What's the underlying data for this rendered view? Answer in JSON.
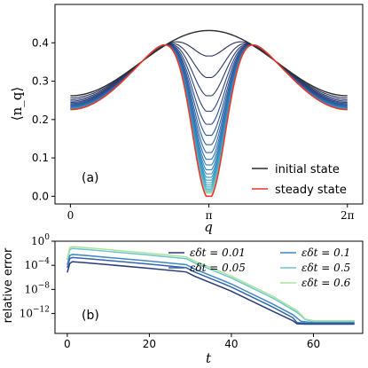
{
  "chart_data": [
    {
      "panel_label": "(a)",
      "type": "line",
      "xlabel": "q",
      "ylabel": "⟨n_q⟩",
      "xlim": [
        -0.35,
        6.63
      ],
      "ylim": [
        -0.02,
        0.5
      ],
      "xticks": [
        {
          "value": 0,
          "label": "0"
        },
        {
          "value": 3.14159,
          "label": "π"
        },
        {
          "value": 6.28319,
          "label": "2π"
        }
      ],
      "yticks": [
        {
          "value": 0.0,
          "label": "0.0"
        },
        {
          "value": 0.1,
          "label": "0.1"
        },
        {
          "value": 0.2,
          "label": "0.2"
        },
        {
          "value": 0.3,
          "label": "0.3"
        },
        {
          "value": 0.4,
          "label": "0.4"
        }
      ],
      "legend": {
        "placement": "lower-right",
        "entries": [
          {
            "label": "initial state",
            "color": "#2b2b2b"
          },
          {
            "label": "steady state",
            "color": "#e8392a"
          }
        ]
      },
      "series": [
        {
          "name": "initial state",
          "color": "#2b2b2b",
          "x": [
            0,
            0.785,
            1.571,
            2.356,
            3.14159,
            3.927,
            4.712,
            5.498,
            6.283
          ],
          "values": [
            0.262,
            0.282,
            0.342,
            0.405,
            0.432,
            0.405,
            0.342,
            0.282,
            0.262
          ]
        },
        {
          "name": "steady state",
          "color": "#e8392a",
          "x": [
            0,
            0.785,
            1.571,
            2.356,
            3.14159,
            3.927,
            4.712,
            5.498,
            6.283
          ],
          "values": [
            0.226,
            0.26,
            0.421,
            0.411,
            0.0,
            0.411,
            0.421,
            0.26,
            0.226
          ]
        }
      ],
      "intermediate_series_count": 24,
      "intermediate_colormap": [
        "#2b2b4a",
        "#2c4a8c",
        "#2f77b6",
        "#3aa1c8",
        "#6fc4c4",
        "#a6dcc6"
      ]
    },
    {
      "panel_label": "(b)",
      "type": "line",
      "xlabel": "t",
      "ylabel": "relative error",
      "yscale": "log",
      "xlim": [
        -3,
        72
      ],
      "ylim_exponent": [
        -15.3,
        0
      ],
      "xticks": [
        {
          "value": 0,
          "label": "0"
        },
        {
          "value": 20,
          "label": "20"
        },
        {
          "value": 40,
          "label": "40"
        },
        {
          "value": 60,
          "label": "60"
        }
      ],
      "yticks": [
        {
          "value": 1,
          "label": "10^0",
          "base": "10",
          "exp": "0"
        },
        {
          "value": 0.0001,
          "label": "10^-4",
          "base": "10",
          "exp": "−4"
        },
        {
          "value": 1e-08,
          "label": "10^-8",
          "base": "10",
          "exp": "−8"
        },
        {
          "value": 1e-12,
          "label": "10^-12",
          "base": "10",
          "exp": "−12"
        }
      ],
      "legend": {
        "placement": "top-right",
        "columns": 2,
        "entries": [
          {
            "label": "εδt = 0.01",
            "color": "#2b3a78"
          },
          {
            "label": "εδt = 0.05",
            "color": "#3565a8"
          },
          {
            "label": "εδt = 0.1",
            "color": "#3f86c6"
          },
          {
            "label": "εδt = 0.5",
            "color": "#6fc3cf"
          },
          {
            "label": "εδt = 0.6",
            "color": "#a8e39a"
          }
        ]
      },
      "series": [
        {
          "name": "εδt = 0.01",
          "color": "#2b3a78",
          "x": [
            0,
            0.6,
            1.2,
            5,
            10,
            20,
            29,
            31,
            40,
            50,
            55,
            56,
            58,
            70
          ],
          "values_log10": [
            -5.2,
            -3.7,
            -3.4,
            -3.6,
            -3.9,
            -4.5,
            -5.1,
            -5.8,
            -8.3,
            -11.6,
            -13.2,
            -13.7,
            -13.75,
            -13.75
          ]
        },
        {
          "name": "εδt = 0.05",
          "color": "#3565a8",
          "x": [
            0,
            0.6,
            1.2,
            5,
            10,
            20,
            29,
            31,
            40,
            50,
            55,
            56,
            58,
            70
          ],
          "values_log10": [
            -4.4,
            -2.9,
            -2.7,
            -2.9,
            -3.2,
            -3.8,
            -4.4,
            -5.1,
            -7.6,
            -10.9,
            -12.7,
            -13.5,
            -13.6,
            -13.6
          ]
        },
        {
          "name": "εδt = 0.1",
          "color": "#3f86c6",
          "x": [
            0,
            0.6,
            1.2,
            5,
            10,
            20,
            29,
            31,
            40,
            50,
            55,
            57,
            59,
            70
          ],
          "values_log10": [
            -3.9,
            -2.4,
            -2.2,
            -2.4,
            -2.7,
            -3.3,
            -3.9,
            -4.6,
            -7.1,
            -10.4,
            -12.2,
            -13.3,
            -13.45,
            -13.45
          ]
        },
        {
          "name": "εδt = 0.5",
          "color": "#6fc3cf",
          "x": [
            0,
            0.6,
            1.2,
            5,
            10,
            20,
            29,
            31,
            40,
            50,
            56,
            58,
            60,
            70
          ],
          "values_log10": [
            -3.1,
            -1.4,
            -1.2,
            -1.4,
            -1.7,
            -2.3,
            -2.9,
            -3.6,
            -6.1,
            -9.4,
            -11.8,
            -13.0,
            -13.3,
            -13.3
          ]
        },
        {
          "name": "εδt = 0.6",
          "color": "#a8e39a",
          "x": [
            0,
            0.6,
            1.2,
            5,
            10,
            20,
            29,
            31,
            40,
            50,
            56,
            58,
            60,
            70
          ],
          "values_log10": [
            -2.9,
            -1.05,
            -0.9,
            -1.1,
            -1.4,
            -2.0,
            -2.6,
            -3.3,
            -5.8,
            -9.1,
            -11.5,
            -12.9,
            -13.2,
            -13.2
          ]
        }
      ]
    }
  ]
}
